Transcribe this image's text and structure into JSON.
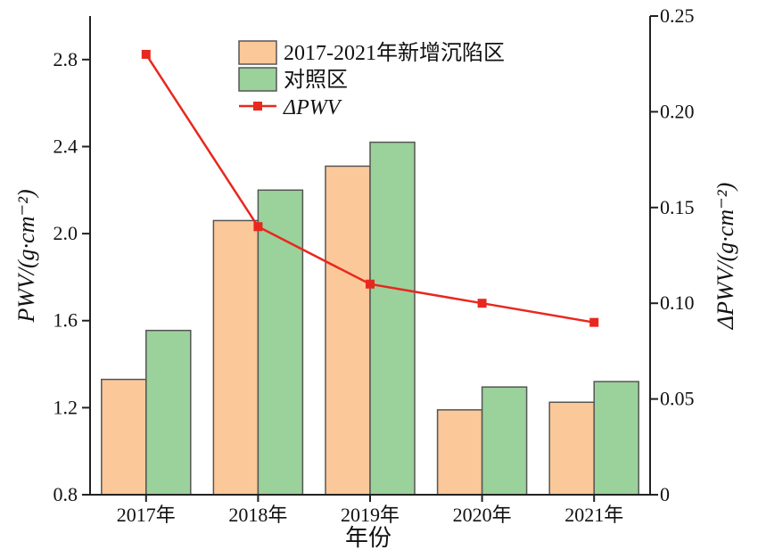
{
  "chart_data": {
    "type": "bar",
    "categories": [
      "2017年",
      "2018年",
      "2019年",
      "2020年",
      "2021年"
    ],
    "xlabel": "年份",
    "ylabel": "PWV/(g·cm⁻²)",
    "y2label": "ΔPWV/(g·cm⁻²)",
    "ylim": [
      0.8,
      3.0
    ],
    "y2lim": [
      0,
      0.25
    ],
    "yticks": [
      "0.8",
      "1.2",
      "1.6",
      "2.0",
      "2.4",
      "2.8"
    ],
    "y2ticks": [
      "0",
      "0.05",
      "0.10",
      "0.15",
      "0.20",
      "0.25"
    ],
    "grid": false,
    "legend_position": "top-center",
    "series": [
      {
        "name": "2017-2021年新增沉陷区",
        "kind": "bar",
        "axis": "left",
        "color": "#FBC899",
        "values": [
          1.33,
          2.06,
          2.31,
          1.19,
          1.225
        ]
      },
      {
        "name": "对照区",
        "kind": "bar",
        "axis": "left",
        "color": "#9BD19B",
        "values": [
          1.555,
          2.2,
          2.42,
          1.295,
          1.32
        ]
      },
      {
        "name": "ΔPWV",
        "kind": "line",
        "axis": "right",
        "color": "#E8281E",
        "values": [
          0.23,
          0.14,
          0.11,
          0.1,
          0.09
        ]
      }
    ]
  }
}
